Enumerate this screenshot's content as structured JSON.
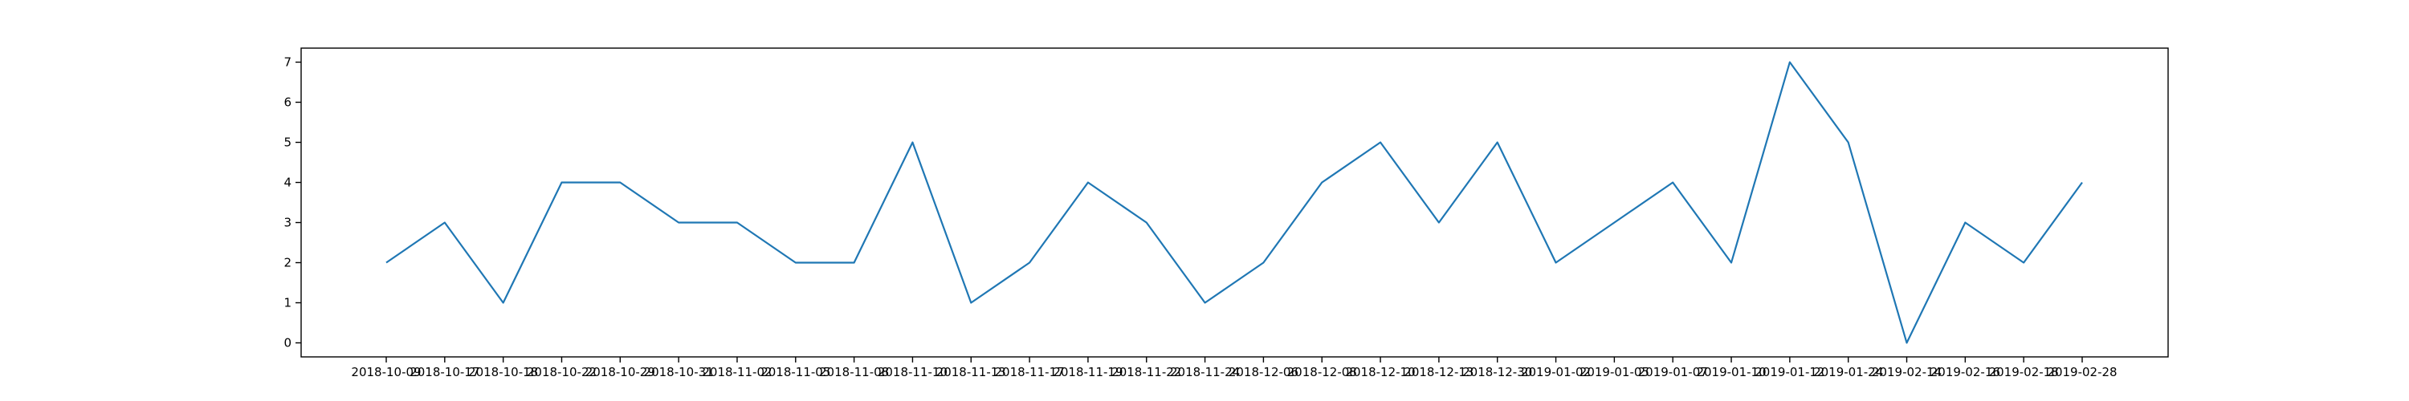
{
  "chart_data": {
    "type": "line",
    "title": "",
    "xlabel": "",
    "ylabel": "",
    "categories": [
      "2018-10-09",
      "2018-10-17",
      "2018-10-18",
      "2018-10-22",
      "2018-10-29",
      "2018-10-31",
      "2018-11-02",
      "2018-11-05",
      "2018-11-08",
      "2018-11-10",
      "2018-11-13",
      "2018-11-17",
      "2018-11-19",
      "2018-11-22",
      "2018-11-24",
      "2018-12-06",
      "2018-12-08",
      "2018-12-10",
      "2018-12-13",
      "2018-12-30",
      "2019-01-02",
      "2019-01-05",
      "2019-01-07",
      "2019-01-10",
      "2019-01-12",
      "2019-01-24",
      "2019-02-14",
      "2019-02-16",
      "2019-02-18",
      "2019-02-28"
    ],
    "series": [
      {
        "values": [
          2,
          3,
          1,
          4,
          4,
          3,
          3,
          2,
          2,
          5,
          1,
          2,
          4,
          3,
          1,
          2,
          4,
          5,
          3,
          5,
          2,
          3,
          4,
          2,
          7,
          5,
          0,
          3,
          2,
          4
        ]
      }
    ],
    "ylim": [
      -0.35,
      7.35
    ],
    "yticks": [
      0,
      1,
      2,
      3,
      4,
      5,
      6,
      7
    ],
    "grid": false,
    "line_color": "#1f77b4"
  }
}
